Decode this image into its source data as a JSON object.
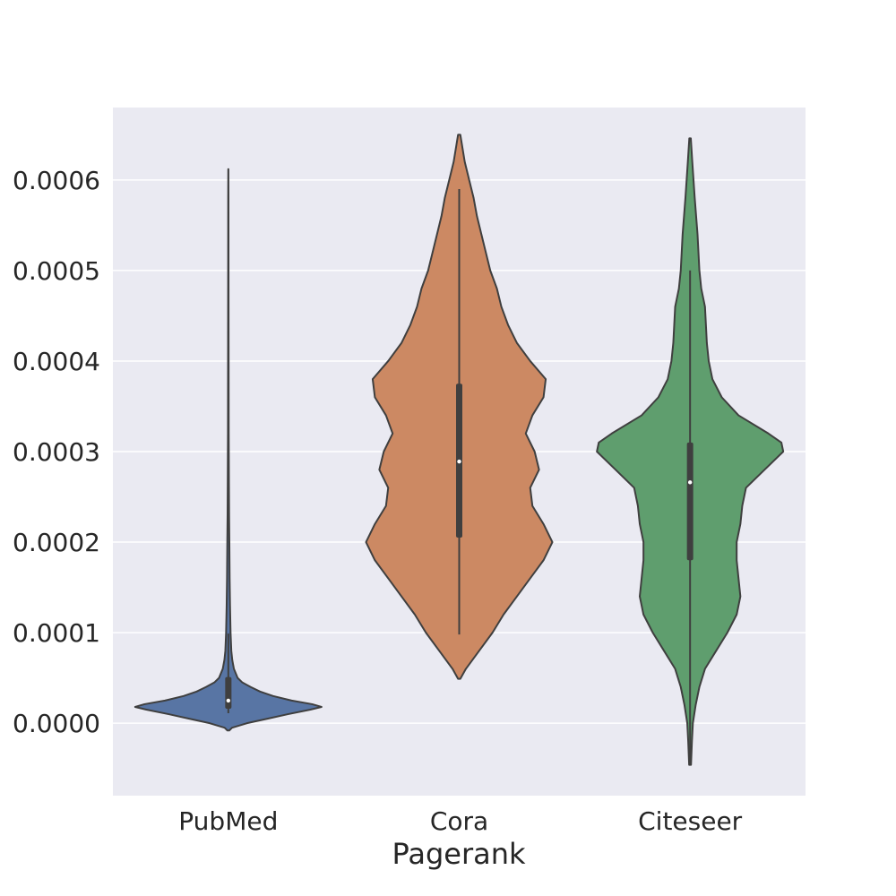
{
  "chart_data": {
    "type": "violin",
    "title": "",
    "xlabel": "Pagerank",
    "ylabel": "",
    "ylim": [
      -8e-05,
      0.00068
    ],
    "yticks": [
      0.0,
      0.0001,
      0.0002,
      0.0003,
      0.0004,
      0.0005,
      0.0006
    ],
    "ytick_labels": [
      "0.0000",
      "0.0001",
      "0.0002",
      "0.0003",
      "0.0004",
      "0.0005",
      "0.0006"
    ],
    "grid": true,
    "background": "#eaeaf2",
    "categories": [
      "PubMed",
      "Cora",
      "Citeseer"
    ],
    "series": [
      {
        "category": "PubMed",
        "color": "#5875a4",
        "min": -8e-06,
        "max": 0.000612,
        "q1": 1.6e-05,
        "median": 2.5e-05,
        "q3": 5.1e-05,
        "whisker_low": 1.1e-05,
        "whisker_high": 9.9e-05,
        "density": [
          [
            -8e-06,
            0.01
          ],
          [
            -5e-06,
            0.04
          ],
          [
            0.0,
            0.2
          ],
          [
            5e-06,
            0.42
          ],
          [
            1e-05,
            0.64
          ],
          [
            1.5e-05,
            0.88
          ],
          [
            1.8e-05,
            1.0
          ],
          [
            2.1e-05,
            0.9
          ],
          [
            2.5e-05,
            0.68
          ],
          [
            3e-05,
            0.48
          ],
          [
            3.5e-05,
            0.34
          ],
          [
            4e-05,
            0.24
          ],
          [
            4.5e-05,
            0.15
          ],
          [
            5e-05,
            0.1
          ],
          [
            6e-05,
            0.06
          ],
          [
            7e-05,
            0.042
          ],
          [
            8e-05,
            0.032
          ],
          [
            0.0001,
            0.024
          ],
          [
            0.00013,
            0.018
          ],
          [
            0.00016,
            0.014
          ],
          [
            0.0002,
            0.011
          ],
          [
            0.00023,
            0.008
          ],
          [
            0.00027,
            0.006
          ],
          [
            0.00032,
            0.004
          ],
          [
            0.0004,
            0.003
          ],
          [
            0.0005,
            0.002
          ],
          [
            0.00058,
            0.0015
          ],
          [
            0.000612,
            0.0005
          ]
        ]
      },
      {
        "category": "Cora",
        "color": "#cc8963",
        "min": 4.9e-05,
        "max": 0.00065,
        "q1": 0.000205,
        "median": 0.000289,
        "q3": 0.000375,
        "whisker_low": 9.8e-05,
        "whisker_high": 0.00059,
        "density": [
          [
            4.9e-05,
            0.005
          ],
          [
            6e-05,
            0.03
          ],
          [
            8e-05,
            0.09
          ],
          [
            0.0001,
            0.15
          ],
          [
            0.00012,
            0.2
          ],
          [
            0.00014,
            0.26
          ],
          [
            0.00016,
            0.32
          ],
          [
            0.00018,
            0.38
          ],
          [
            0.0002,
            0.42
          ],
          [
            0.00022,
            0.38
          ],
          [
            0.00024,
            0.33
          ],
          [
            0.00026,
            0.32
          ],
          [
            0.00028,
            0.36
          ],
          [
            0.0003,
            0.34
          ],
          [
            0.00032,
            0.3
          ],
          [
            0.00034,
            0.33
          ],
          [
            0.00036,
            0.38
          ],
          [
            0.00038,
            0.39
          ],
          [
            0.0004,
            0.32
          ],
          [
            0.00042,
            0.26
          ],
          [
            0.00044,
            0.22
          ],
          [
            0.00046,
            0.19
          ],
          [
            0.00048,
            0.17
          ],
          [
            0.0005,
            0.14
          ],
          [
            0.00052,
            0.12
          ],
          [
            0.00054,
            0.1
          ],
          [
            0.00056,
            0.08
          ],
          [
            0.00058,
            0.065
          ],
          [
            0.0006,
            0.045
          ],
          [
            0.00062,
            0.025
          ],
          [
            0.00065,
            0.005
          ]
        ]
      },
      {
        "category": "Citeseer",
        "color": "#5f9e6e",
        "min": -4.6e-05,
        "max": 0.000646,
        "q1": 0.00018,
        "median": 0.000266,
        "q3": 0.00031,
        "whisker_low": -4.6e-05,
        "whisker_high": 0.0005,
        "density": [
          [
            -4.6e-05,
            0.005
          ],
          [
            -2e-05,
            0.01
          ],
          [
            0.0,
            0.015
          ],
          [
            2e-05,
            0.03
          ],
          [
            4e-05,
            0.05
          ],
          [
            6e-05,
            0.08
          ],
          [
            8e-05,
            0.14
          ],
          [
            0.0001,
            0.2
          ],
          [
            0.00012,
            0.25
          ],
          [
            0.00014,
            0.27
          ],
          [
            0.00016,
            0.26
          ],
          [
            0.00018,
            0.25
          ],
          [
            0.0002,
            0.25
          ],
          [
            0.00022,
            0.27
          ],
          [
            0.00024,
            0.28
          ],
          [
            0.00026,
            0.3
          ],
          [
            0.00028,
            0.4
          ],
          [
            0.0003,
            0.5
          ],
          [
            0.00031,
            0.49
          ],
          [
            0.00032,
            0.42
          ],
          [
            0.00034,
            0.26
          ],
          [
            0.00036,
            0.17
          ],
          [
            0.00038,
            0.12
          ],
          [
            0.0004,
            0.1
          ],
          [
            0.00042,
            0.09
          ],
          [
            0.00044,
            0.085
          ],
          [
            0.00046,
            0.08
          ],
          [
            0.00048,
            0.06
          ],
          [
            0.0005,
            0.05
          ],
          [
            0.00054,
            0.04
          ],
          [
            0.00058,
            0.025
          ],
          [
            0.00062,
            0.012
          ],
          [
            0.000646,
            0.004
          ]
        ]
      }
    ]
  }
}
